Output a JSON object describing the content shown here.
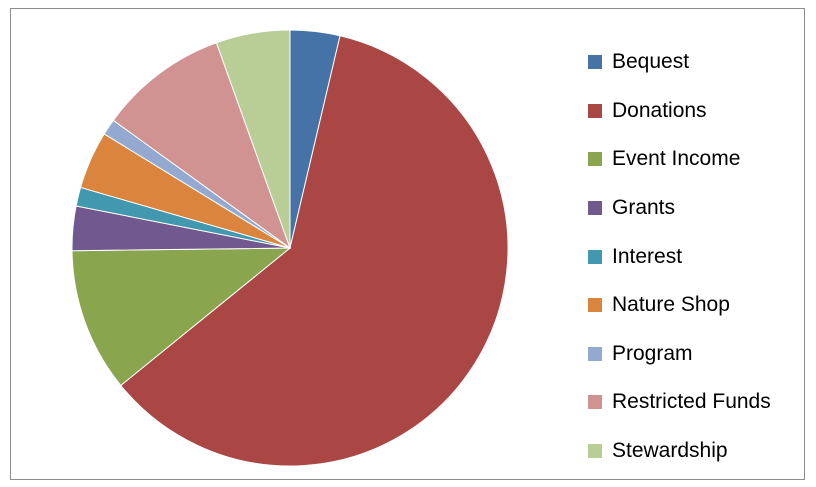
{
  "chart_data": {
    "type": "pie",
    "categories": [
      "Bequest",
      "Donations",
      "Event Income",
      "Grants",
      "Interest",
      "Nature Shop",
      "Program",
      "Restricted Funds",
      "Stewardship"
    ],
    "values": [
      3.7,
      60.7,
      10.7,
      3.3,
      1.4,
      4.3,
      1.2,
      9.6,
      5.5
    ],
    "colors": [
      "#4572a7",
      "#aa4643",
      "#89a54e",
      "#71588f",
      "#4198af",
      "#db843d",
      "#93a9cf",
      "#d19392",
      "#b9cd96"
    ],
    "start_angle_deg": 0,
    "direction": "clockwise",
    "legend": "right",
    "title": ""
  }
}
